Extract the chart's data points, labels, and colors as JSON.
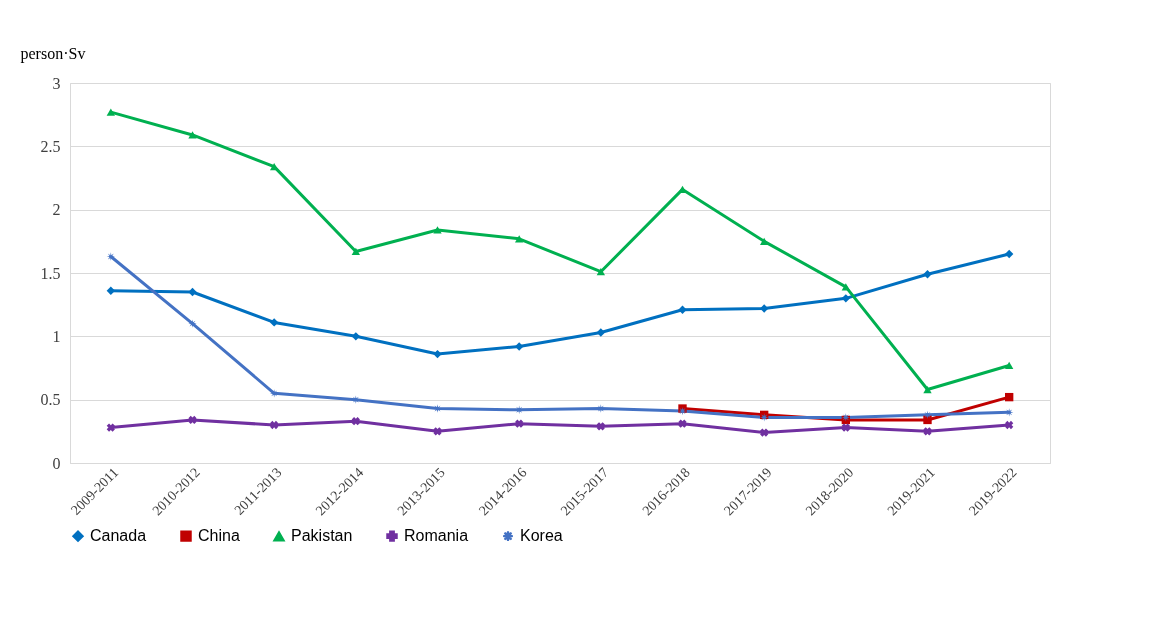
{
  "chart_data": {
    "type": "line",
    "ylabel": "person·Sv",
    "categories": [
      "2009-2011",
      "2010-2012",
      "2011-2013",
      "2012-2014",
      "2013-2015",
      "2014-2016",
      "2015-2017",
      "2016-2018",
      "2017-2019",
      "2018-2020",
      "2019-2021",
      "2019-2022"
    ],
    "series": [
      {
        "name": "Canada",
        "color": "#0070c0",
        "marker": "diamond",
        "values": [
          1.36,
          1.35,
          1.11,
          1.0,
          0.86,
          0.92,
          1.03,
          1.21,
          1.22,
          1.3,
          1.49,
          1.65
        ]
      },
      {
        "name": "China",
        "color": "#c00000",
        "marker": "square",
        "values": [
          null,
          null,
          null,
          null,
          null,
          null,
          null,
          0.43,
          0.38,
          0.34,
          0.34,
          0.52
        ]
      },
      {
        "name": "Pakistan",
        "color": "#00b050",
        "marker": "triangle",
        "values": [
          2.77,
          2.59,
          2.34,
          1.67,
          1.84,
          1.77,
          1.51,
          2.16,
          1.75,
          1.39,
          0.58,
          0.77
        ]
      },
      {
        "name": "Romania",
        "color": "#7030a0",
        "marker": "cross",
        "values": [
          0.28,
          0.34,
          0.3,
          0.33,
          0.25,
          0.31,
          0.29,
          0.31,
          0.24,
          0.28,
          0.25,
          0.3
        ]
      },
      {
        "name": "Korea",
        "color": "#4472c4",
        "marker": "star",
        "values": [
          1.63,
          1.1,
          0.55,
          0.5,
          0.43,
          0.42,
          0.43,
          0.41,
          0.36,
          0.36,
          0.38,
          0.4
        ]
      }
    ],
    "ylim": [
      0,
      3
    ],
    "yticks": [
      0,
      0.5,
      1,
      1.5,
      2,
      2.5,
      3
    ],
    "grid": "y",
    "legend": "bottom"
  }
}
